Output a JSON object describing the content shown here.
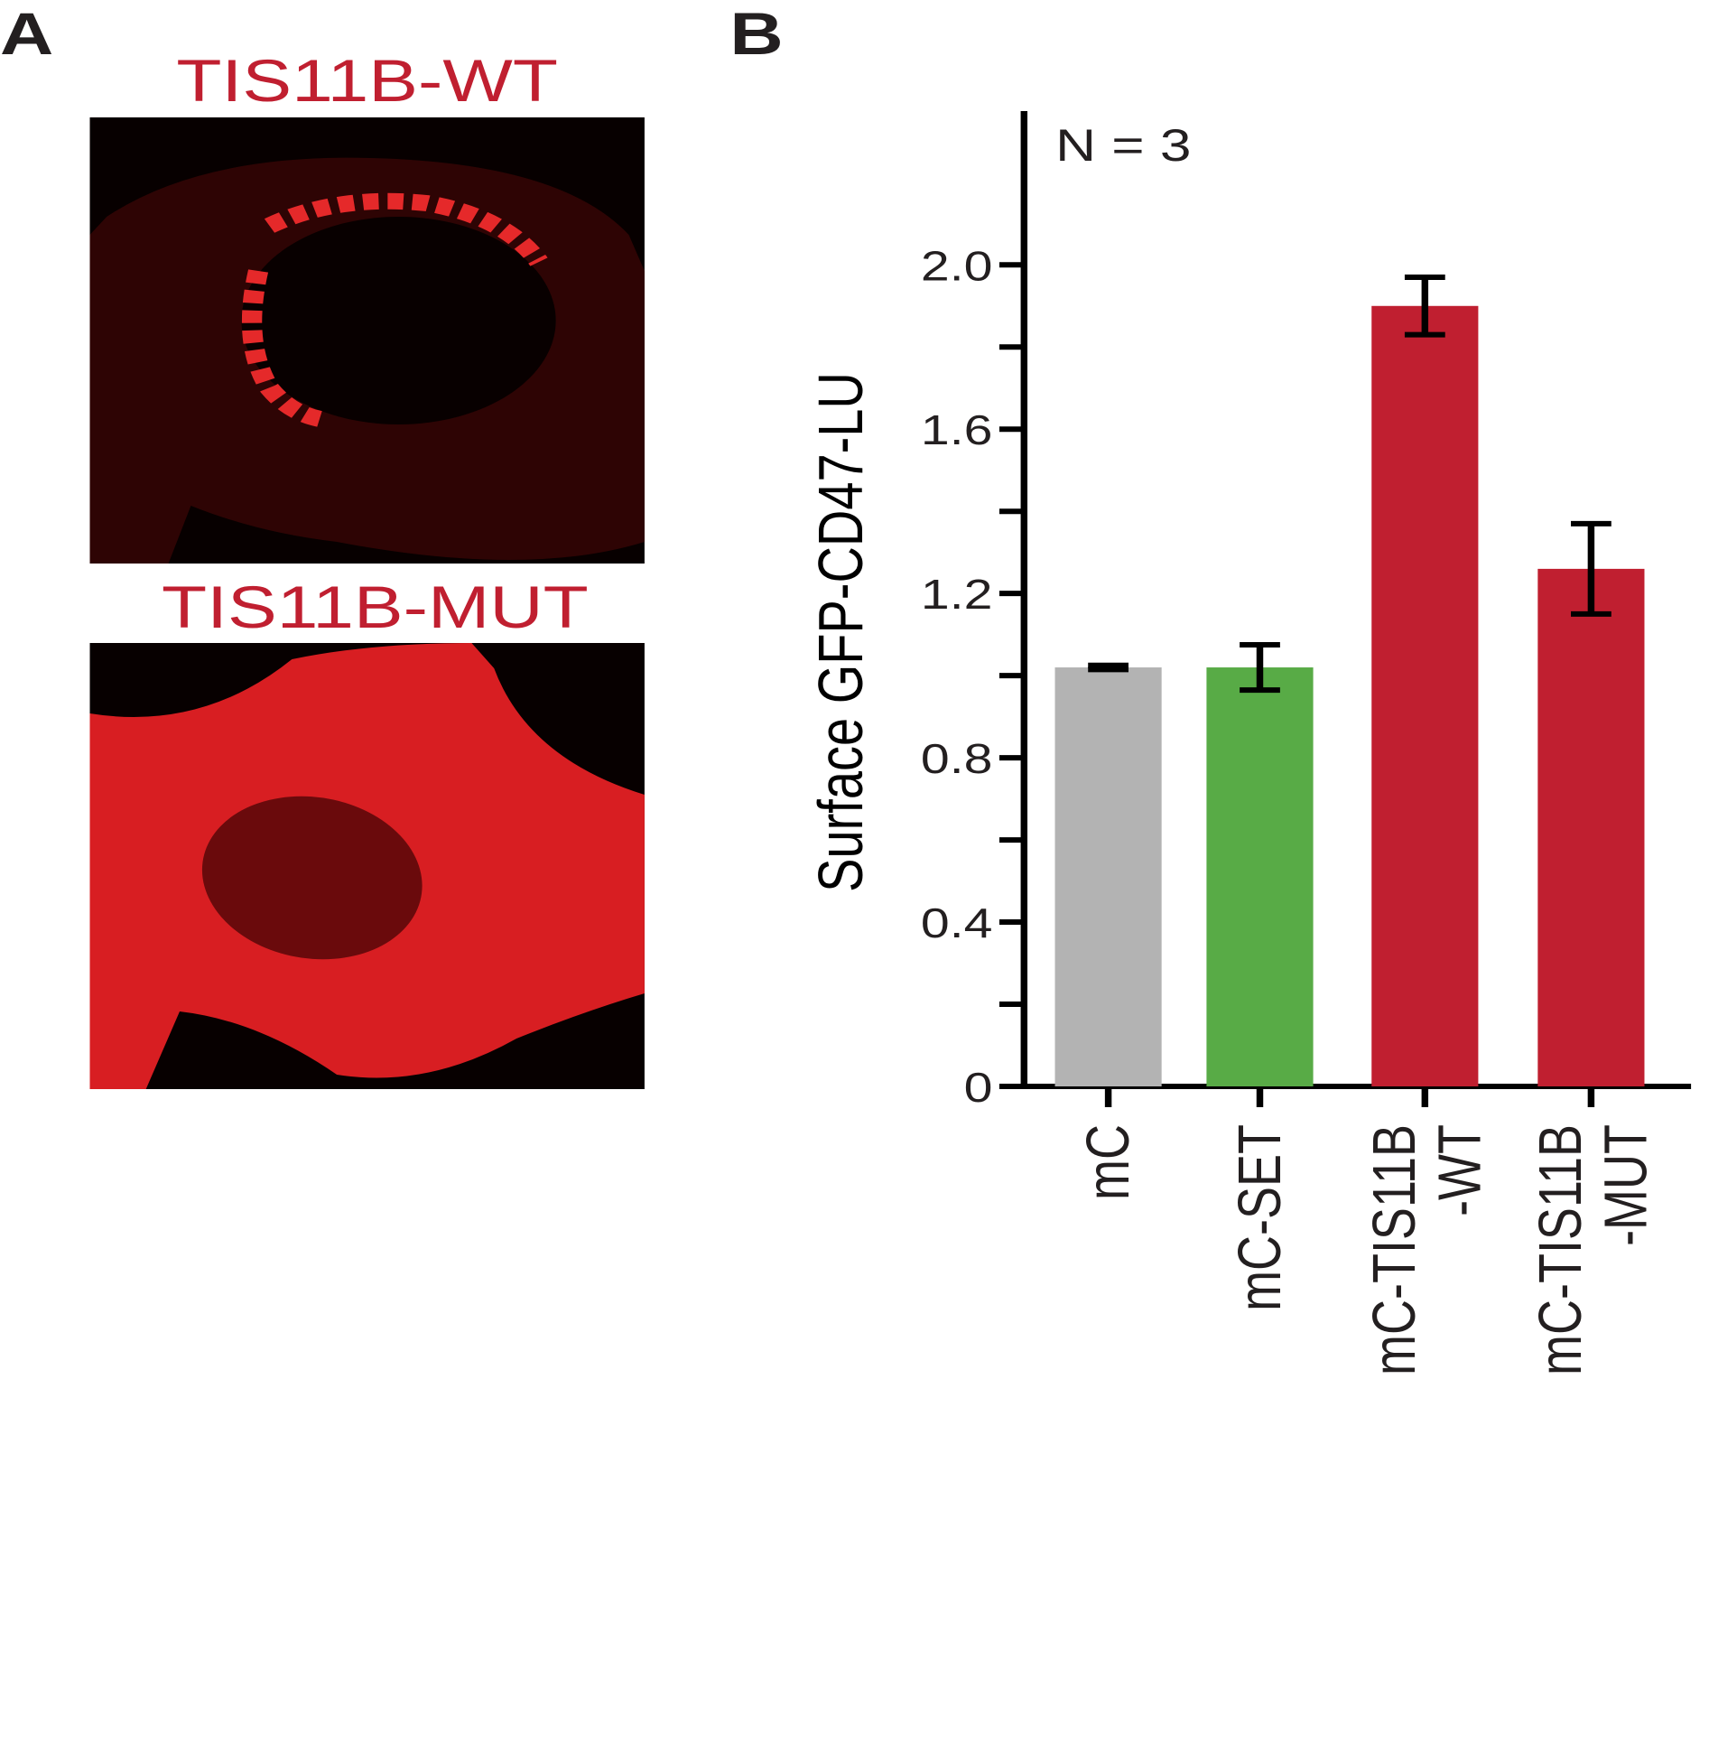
{
  "panel_a": {
    "label": "A",
    "images": [
      {
        "title": "TIS11B-WT"
      },
      {
        "title": "TIS11B-MUT"
      }
    ]
  },
  "chart_data": {
    "type": "bar",
    "panel_label": "B",
    "annotation": "N = 3",
    "ylabel": "Surface GFP-CD47-LU",
    "categories": [
      "mC",
      "mC-SET",
      "mC-TIS11B\n-WT",
      "mC-TIS11B\n-MUT"
    ],
    "values": [
      1.02,
      1.02,
      1.9,
      1.26
    ],
    "errors": [
      0.005,
      0.055,
      0.07,
      0.11
    ],
    "colors": [
      "#b3b3b3",
      "#58ab46",
      "#c01f30",
      "#c01f30"
    ],
    "ylim": [
      0,
      2.37
    ],
    "yticks": [
      0,
      0.4,
      0.8,
      1.2,
      1.6,
      {
        "value": 2,
        "label": "2.0"
      }
    ],
    "yminor": [
      0.2,
      0.6,
      1.0,
      1.4,
      1.8
    ]
  }
}
